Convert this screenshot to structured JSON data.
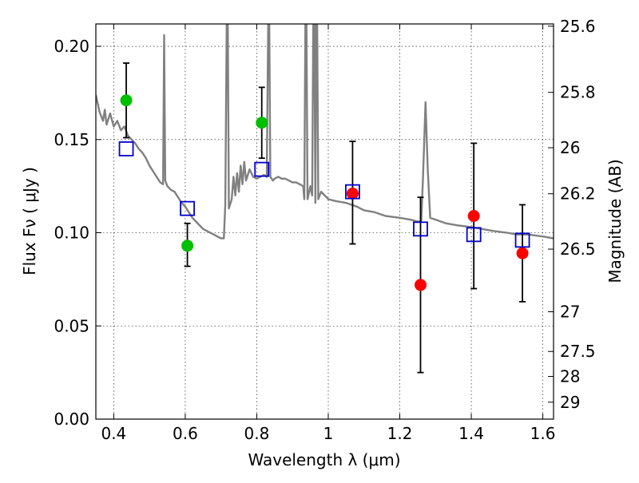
{
  "chart_data": {
    "type": "scatter",
    "title": "",
    "xlabel": "Wavelength  λ (μm)",
    "ylabel": "Flux  Fν  ( μJy )",
    "ylabel_right": "Magnitude (AB)",
    "xlim": [
      0.35,
      1.63
    ],
    "ylim": [
      0.0,
      0.212
    ],
    "grid": true,
    "x_ticks": [
      0.4,
      0.6,
      0.8,
      1.0,
      1.2,
      1.4,
      1.6
    ],
    "x_tick_labels": [
      "0.4",
      "0.6",
      "0.8",
      "1",
      "1.2",
      "1.4",
      "1.6"
    ],
    "y_ticks": [
      0.0,
      0.05,
      0.1,
      0.15,
      0.2
    ],
    "y_tick_labels": [
      "0.00",
      "0.05",
      "0.10",
      "0.15",
      "0.20"
    ],
    "right_ticks": [
      {
        "flux": 0.2108,
        "label": "25.6"
      },
      {
        "flux": 0.1753,
        "label": "25.8"
      },
      {
        "flux": 0.1456,
        "label": "26"
      },
      {
        "flux": 0.1209,
        "label": "26.2"
      },
      {
        "flux": 0.0912,
        "label": "26.5"
      },
      {
        "flux": 0.0576,
        "label": "27"
      },
      {
        "flux": 0.0363,
        "label": "27.5"
      },
      {
        "flux": 0.0229,
        "label": "28"
      },
      {
        "flux": 0.0091,
        "label": "29"
      }
    ],
    "series": [
      {
        "kind": "line",
        "color": "#808080",
        "points": [
          [
            0.35,
            0.174
          ],
          [
            0.36,
            0.165
          ],
          [
            0.37,
            0.16
          ],
          [
            0.375,
            0.166
          ],
          [
            0.38,
            0.158
          ],
          [
            0.39,
            0.164
          ],
          [
            0.4,
            0.157
          ],
          [
            0.41,
            0.16
          ],
          [
            0.42,
            0.155
          ],
          [
            0.43,
            0.157
          ],
          [
            0.44,
            0.152
          ],
          [
            0.45,
            0.15
          ],
          [
            0.46,
            0.148
          ],
          [
            0.47,
            0.145
          ],
          [
            0.48,
            0.143
          ],
          [
            0.49,
            0.14
          ],
          [
            0.5,
            0.136
          ],
          [
            0.51,
            0.133
          ],
          [
            0.52,
            0.13
          ],
          [
            0.53,
            0.127
          ],
          [
            0.538,
            0.126
          ],
          [
            0.541,
            0.206
          ],
          [
            0.544,
            0.128
          ],
          [
            0.55,
            0.125
          ],
          [
            0.56,
            0.123
          ],
          [
            0.57,
            0.122
          ],
          [
            0.58,
            0.119
          ],
          [
            0.59,
            0.116
          ],
          [
            0.6,
            0.114
          ],
          [
            0.61,
            0.111
          ],
          [
            0.62,
            0.108
          ],
          [
            0.63,
            0.106
          ],
          [
            0.64,
            0.104
          ],
          [
            0.65,
            0.102
          ],
          [
            0.66,
            0.101
          ],
          [
            0.67,
            0.1
          ],
          [
            0.68,
            0.099
          ],
          [
            0.69,
            0.098
          ],
          [
            0.7,
            0.097
          ],
          [
            0.708,
            0.097
          ],
          [
            0.712,
            0.115
          ],
          [
            0.716,
            0.212
          ],
          [
            0.719,
            0.212
          ],
          [
            0.722,
            0.113
          ],
          [
            0.73,
            0.118
          ],
          [
            0.735,
            0.13
          ],
          [
            0.74,
            0.12
          ],
          [
            0.745,
            0.132
          ],
          [
            0.75,
            0.122
          ],
          [
            0.755,
            0.136
          ],
          [
            0.76,
            0.126
          ],
          [
            0.765,
            0.138
          ],
          [
            0.77,
            0.128
          ],
          [
            0.78,
            0.134
          ],
          [
            0.79,
            0.13
          ],
          [
            0.8,
            0.129
          ],
          [
            0.81,
            0.13
          ],
          [
            0.82,
            0.131
          ],
          [
            0.828,
            0.13
          ],
          [
            0.832,
            0.212
          ],
          [
            0.835,
            0.212
          ],
          [
            0.838,
            0.13
          ],
          [
            0.845,
            0.128
          ],
          [
            0.85,
            0.129
          ],
          [
            0.86,
            0.13
          ],
          [
            0.87,
            0.129
          ],
          [
            0.88,
            0.129
          ],
          [
            0.89,
            0.128
          ],
          [
            0.9,
            0.127
          ],
          [
            0.91,
            0.127
          ],
          [
            0.92,
            0.126
          ],
          [
            0.93,
            0.125
          ],
          [
            0.933,
            0.118
          ],
          [
            0.936,
            0.212
          ],
          [
            0.939,
            0.212
          ],
          [
            0.942,
            0.118
          ],
          [
            0.95,
            0.125
          ],
          [
            0.955,
            0.12
          ],
          [
            0.958,
            0.212
          ],
          [
            0.961,
            0.212
          ],
          [
            0.964,
            0.116
          ],
          [
            0.966,
            0.212
          ],
          [
            0.969,
            0.212
          ],
          [
            0.972,
            0.118
          ],
          [
            0.98,
            0.122
          ],
          [
            1.0,
            0.118
          ],
          [
            1.02,
            0.117
          ],
          [
            1.05,
            0.116
          ],
          [
            1.08,
            0.114
          ],
          [
            1.1,
            0.112
          ],
          [
            1.13,
            0.111
          ],
          [
            1.16,
            0.109
          ],
          [
            1.2,
            0.108
          ],
          [
            1.23,
            0.107
          ],
          [
            1.25,
            0.106
          ],
          [
            1.26,
            0.106
          ],
          [
            1.265,
            0.13
          ],
          [
            1.272,
            0.17
          ],
          [
            1.278,
            0.135
          ],
          [
            1.285,
            0.108
          ],
          [
            1.3,
            0.107
          ],
          [
            1.33,
            0.105
          ],
          [
            1.36,
            0.104
          ],
          [
            1.4,
            0.103
          ],
          [
            1.43,
            0.102
          ],
          [
            1.46,
            0.101
          ],
          [
            1.5,
            0.1
          ],
          [
            1.53,
            0.099
          ],
          [
            1.56,
            0.099
          ],
          [
            1.6,
            0.098
          ],
          [
            1.63,
            0.097
          ]
        ]
      },
      {
        "kind": "points",
        "marker": "circle",
        "color": "#00bf00",
        "points": [
          {
            "x": 0.435,
            "y": 0.171,
            "lo": 0.151,
            "hi": 0.191
          },
          {
            "x": 0.606,
            "y": 0.093,
            "lo": 0.082,
            "hi": 0.105
          },
          {
            "x": 0.814,
            "y": 0.159,
            "lo": 0.14,
            "hi": 0.178
          }
        ]
      },
      {
        "kind": "points",
        "marker": "circle",
        "color": "#ff0000",
        "points": [
          {
            "x": 1.068,
            "y": 0.121,
            "lo": 0.094,
            "hi": 0.149
          },
          {
            "x": 1.258,
            "y": 0.072,
            "lo": 0.025,
            "hi": 0.119
          },
          {
            "x": 1.407,
            "y": 0.109,
            "lo": 0.07,
            "hi": 0.148
          },
          {
            "x": 1.543,
            "y": 0.089,
            "lo": 0.063,
            "hi": 0.115
          }
        ]
      },
      {
        "kind": "points",
        "marker": "square",
        "color": "#0000cc",
        "points": [
          {
            "x": 0.435,
            "y": 0.145
          },
          {
            "x": 0.606,
            "y": 0.113
          },
          {
            "x": 0.814,
            "y": 0.134
          },
          {
            "x": 1.068,
            "y": 0.122
          },
          {
            "x": 1.258,
            "y": 0.102
          },
          {
            "x": 1.407,
            "y": 0.099
          },
          {
            "x": 1.543,
            "y": 0.096
          }
        ]
      }
    ]
  }
}
